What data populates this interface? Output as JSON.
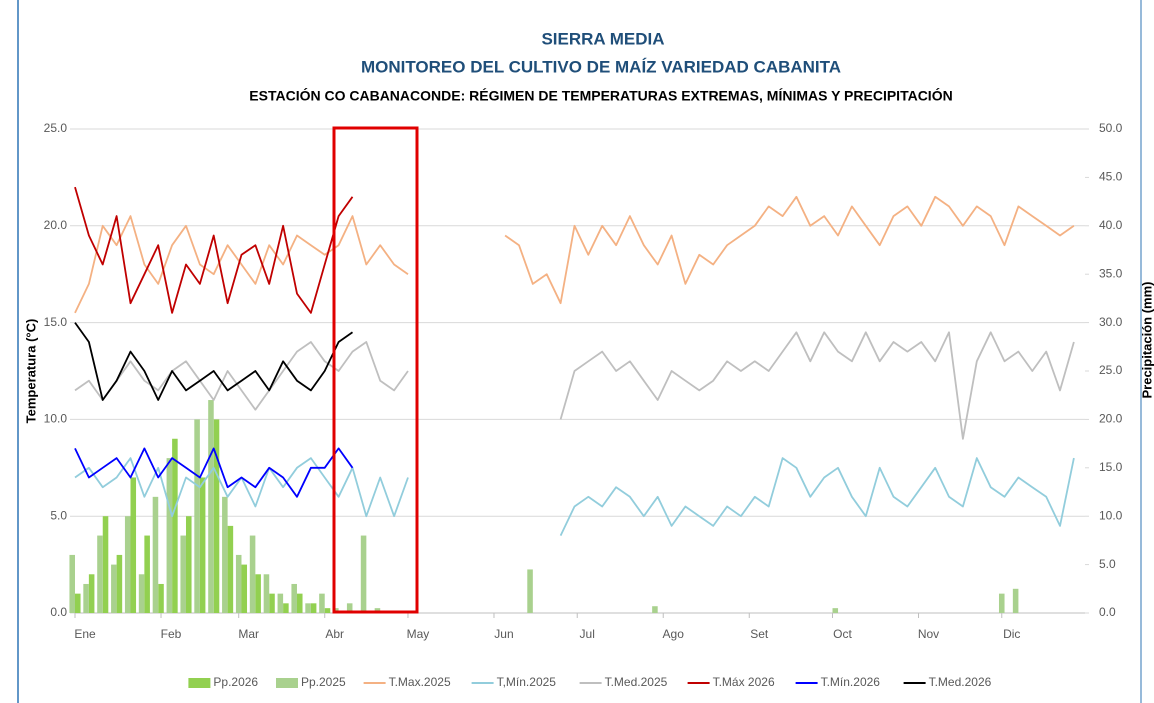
{
  "chart_data": {
    "type": "combo",
    "title": "SIERRA MEDIA",
    "subtitle": "MONITOREO DEL CULTIVO DE MAÍZ VARIEDAD CABANITA",
    "subtitle2": "ESTACIÓN CO CABANACONDE: RÉGIMEN DE TEMPERATURAS EXTREMAS, MÍNIMAS Y PRECIPITACIÓN",
    "y_label": "Temperatura (°C)",
    "y2_label": "Precipitación (mm)",
    "xlim": [
      1,
      365
    ],
    "xticks": [
      {
        "value": 1,
        "label": "Ene"
      },
      {
        "value": 32,
        "label": "Feb"
      },
      {
        "value": 60,
        "label": "Mar"
      },
      {
        "value": 91,
        "label": "Abr"
      },
      {
        "value": 121,
        "label": "May"
      },
      {
        "value": 152,
        "label": "Jun"
      },
      {
        "value": 182,
        "label": "Jul"
      },
      {
        "value": 213,
        "label": "Ago"
      },
      {
        "value": 244,
        "label": "Set"
      },
      {
        "value": 274,
        "label": "Oct"
      },
      {
        "value": 305,
        "label": "Nov"
      },
      {
        "value": 335,
        "label": "Dic"
      }
    ],
    "ylim": [
      0,
      25
    ],
    "yticks": [
      {
        "value": 0,
        "label": "0.0"
      },
      {
        "value": 5,
        "label": "5.0"
      },
      {
        "value": 10,
        "label": "10.0"
      },
      {
        "value": 15,
        "label": "15.0"
      },
      {
        "value": 20,
        "label": "20.0"
      },
      {
        "value": 25,
        "label": "25.0"
      }
    ],
    "y2lim": [
      0,
      50
    ],
    "y2ticks": [
      {
        "value": 0,
        "label": "0.0"
      },
      {
        "value": 5,
        "label": "5.0"
      },
      {
        "value": 10,
        "label": "10.0"
      },
      {
        "value": 15,
        "label": "15.0"
      },
      {
        "value": 20,
        "label": "20.0"
      },
      {
        "value": 25,
        "label": "25.0"
      },
      {
        "value": 30,
        "label": "30.0"
      },
      {
        "value": 35,
        "label": "35.0"
      },
      {
        "value": 40,
        "label": "40.0"
      },
      {
        "value": 45,
        "label": "45.0"
      },
      {
        "value": 50,
        "label": "50.0"
      }
    ],
    "grid": true,
    "legend": "bottom",
    "x": [
      1,
      6,
      11,
      16,
      21,
      26,
      31,
      36,
      41,
      46,
      51,
      56,
      61,
      66,
      71,
      76,
      81,
      86,
      91,
      96,
      101,
      106,
      111,
      116,
      121,
      126,
      131,
      136,
      141,
      146,
      151,
      156,
      161,
      166,
      171,
      176,
      181,
      186,
      191,
      196,
      201,
      206,
      211,
      216,
      221,
      226,
      231,
      236,
      241,
      246,
      251,
      256,
      261,
      266,
      271,
      276,
      281,
      286,
      291,
      296,
      301,
      306,
      311,
      316,
      321,
      326,
      331,
      336,
      341,
      346,
      351,
      356,
      361
    ],
    "series": [
      {
        "name": "Pp.2026",
        "type": "bar",
        "axis": "y2",
        "color": "#92d050",
        "values": [
          2,
          4,
          10,
          6,
          14,
          8,
          3,
          18,
          10,
          14,
          20,
          9,
          5,
          4,
          2,
          1,
          2,
          1,
          0.5,
          0,
          0,
          null,
          null,
          null,
          null,
          null,
          null,
          null,
          null,
          null,
          null,
          null,
          null,
          null,
          null,
          null,
          null,
          null,
          null,
          null,
          null,
          null,
          null,
          null,
          null,
          null,
          null,
          null,
          null,
          null,
          null,
          null,
          null,
          null,
          null,
          null,
          null,
          null,
          null,
          null,
          null,
          null,
          null,
          null,
          null,
          null,
          null,
          null,
          null,
          null,
          null,
          null,
          null
        ]
      },
      {
        "name": "Pp.2025",
        "type": "bar",
        "axis": "y2",
        "color": "#a9d18e",
        "values": [
          6,
          3,
          8,
          5,
          10,
          4,
          12,
          16,
          8,
          20,
          22,
          12,
          6,
          8,
          4,
          2,
          3,
          1,
          2,
          0.5,
          1,
          8,
          0.5,
          0,
          0,
          0,
          0,
          0,
          0,
          0,
          0,
          0,
          0,
          4.5,
          0,
          0,
          0,
          0,
          0,
          0,
          0,
          0,
          0.7,
          0,
          0,
          0,
          0,
          0,
          0,
          0,
          0,
          0,
          0,
          0,
          0,
          0.5,
          0,
          0,
          0,
          0,
          0,
          0,
          0,
          0,
          0,
          0,
          0,
          2,
          2.5,
          0,
          0,
          0,
          0
        ]
      },
      {
        "name": "T.Max.2025",
        "type": "line",
        "color": "#f4b183",
        "values": [
          15.5,
          17,
          20,
          19,
          20.5,
          18,
          17,
          19,
          20,
          18,
          17.5,
          19,
          18,
          17,
          19,
          18,
          19.5,
          19,
          18.5,
          19,
          20.5,
          18,
          19,
          18,
          17.5,
          null,
          null,
          null,
          null,
          null,
          null,
          19.5,
          19,
          17,
          17.5,
          16,
          20,
          18.5,
          20,
          19,
          20.5,
          19,
          18,
          19.5,
          17,
          18.5,
          18,
          19,
          19.5,
          20,
          21,
          20.5,
          21.5,
          20,
          20.5,
          19.5,
          21,
          20,
          19,
          20.5,
          21,
          20,
          21.5,
          21,
          20,
          21,
          20.5,
          19,
          21,
          20.5,
          20,
          19.5,
          20
        ]
      },
      {
        "name": "T,Mín.2025",
        "type": "line",
        "color": "#92cddc",
        "values": [
          7,
          7.5,
          6.5,
          7,
          8,
          6,
          7.5,
          5,
          7,
          6.5,
          7.5,
          6,
          7,
          5.5,
          7.5,
          6.5,
          7.5,
          8,
          7,
          6,
          7.5,
          5,
          7,
          5,
          7,
          null,
          null,
          null,
          null,
          null,
          null,
          null,
          null,
          null,
          null,
          4,
          5.5,
          6,
          5.5,
          6.5,
          6,
          5,
          6,
          4.5,
          5.5,
          5,
          4.5,
          5.5,
          5,
          6,
          5.5,
          8,
          7.5,
          6,
          7,
          7.5,
          6,
          5,
          7.5,
          6,
          5.5,
          6.5,
          7.5,
          6,
          5.5,
          8,
          6.5,
          6,
          7,
          6.5,
          6,
          4.5,
          8
        ]
      },
      {
        "name": "T.Med.2025",
        "type": "line",
        "color": "#bfbfbf",
        "values": [
          11.5,
          12,
          11,
          12,
          13,
          12,
          11.5,
          12.5,
          13,
          12,
          11,
          12.5,
          11.5,
          10.5,
          11.5,
          12.5,
          13.5,
          14,
          13,
          12.5,
          13.5,
          14,
          12,
          11.5,
          12.5,
          null,
          null,
          null,
          null,
          null,
          null,
          null,
          null,
          null,
          null,
          10,
          12.5,
          13,
          13.5,
          12.5,
          13,
          12,
          11,
          12.5,
          12,
          11.5,
          12,
          13,
          12.5,
          13,
          12.5,
          13.5,
          14.5,
          13,
          14.5,
          13.5,
          13,
          14.5,
          13,
          14,
          13.5,
          14,
          13,
          14.5,
          9,
          13,
          14.5,
          13,
          13.5,
          12.5,
          13.5,
          11.5,
          14
        ]
      },
      {
        "name": "T.Máx 2026",
        "type": "line",
        "color": "#c00000",
        "values": [
          22,
          19.5,
          18,
          20.5,
          16,
          17.5,
          19,
          15.5,
          18,
          17,
          19.5,
          16,
          18.5,
          19,
          17,
          20,
          16.5,
          15.5,
          18,
          20.5,
          21.5,
          null,
          null,
          null,
          null,
          null,
          null,
          null,
          null,
          null,
          null,
          null,
          null,
          null,
          null,
          null,
          null,
          null,
          null,
          null,
          null,
          null,
          null,
          null,
          null,
          null,
          null,
          null,
          null,
          null,
          null,
          null,
          null,
          null,
          null,
          null,
          null,
          null,
          null,
          null,
          null,
          null,
          null,
          null,
          null,
          null,
          null,
          null,
          null,
          null,
          null,
          null,
          null
        ]
      },
      {
        "name": "T.Mín.2026",
        "type": "line",
        "color": "#0000ff",
        "values": [
          8.5,
          7,
          7.5,
          8,
          7,
          8.5,
          7,
          8,
          7.5,
          7,
          8.5,
          6.5,
          7,
          6.5,
          7.5,
          7,
          6,
          7.5,
          7.5,
          8.5,
          7.5,
          null,
          null,
          null,
          null,
          null,
          null,
          null,
          null,
          null,
          null,
          null,
          null,
          null,
          null,
          null,
          null,
          null,
          null,
          null,
          null,
          null,
          null,
          null,
          null,
          null,
          null,
          null,
          null,
          null,
          null,
          null,
          null,
          null,
          null,
          null,
          null,
          null,
          null,
          null,
          null,
          null,
          null,
          null,
          null,
          null,
          null,
          null,
          null,
          null,
          null,
          null,
          null
        ]
      },
      {
        "name": "T.Med.2026",
        "type": "line",
        "color": "#000000",
        "values": [
          15,
          14,
          11,
          12,
          13.5,
          12.5,
          11,
          12.5,
          11.5,
          12,
          12.5,
          11.5,
          12,
          12.5,
          11.5,
          13,
          12,
          11.5,
          12.5,
          14,
          14.5,
          null,
          null,
          null,
          null,
          null,
          null,
          null,
          null,
          null,
          null,
          null,
          null,
          null,
          null,
          null,
          null,
          null,
          null,
          null,
          null,
          null,
          null,
          null,
          null,
          null,
          null,
          null,
          null,
          null,
          null,
          null,
          null,
          null,
          null,
          null,
          null,
          null,
          null,
          null,
          null,
          null,
          null,
          null,
          null,
          null,
          null,
          null,
          null,
          null,
          null,
          null,
          null
        ]
      }
    ]
  }
}
